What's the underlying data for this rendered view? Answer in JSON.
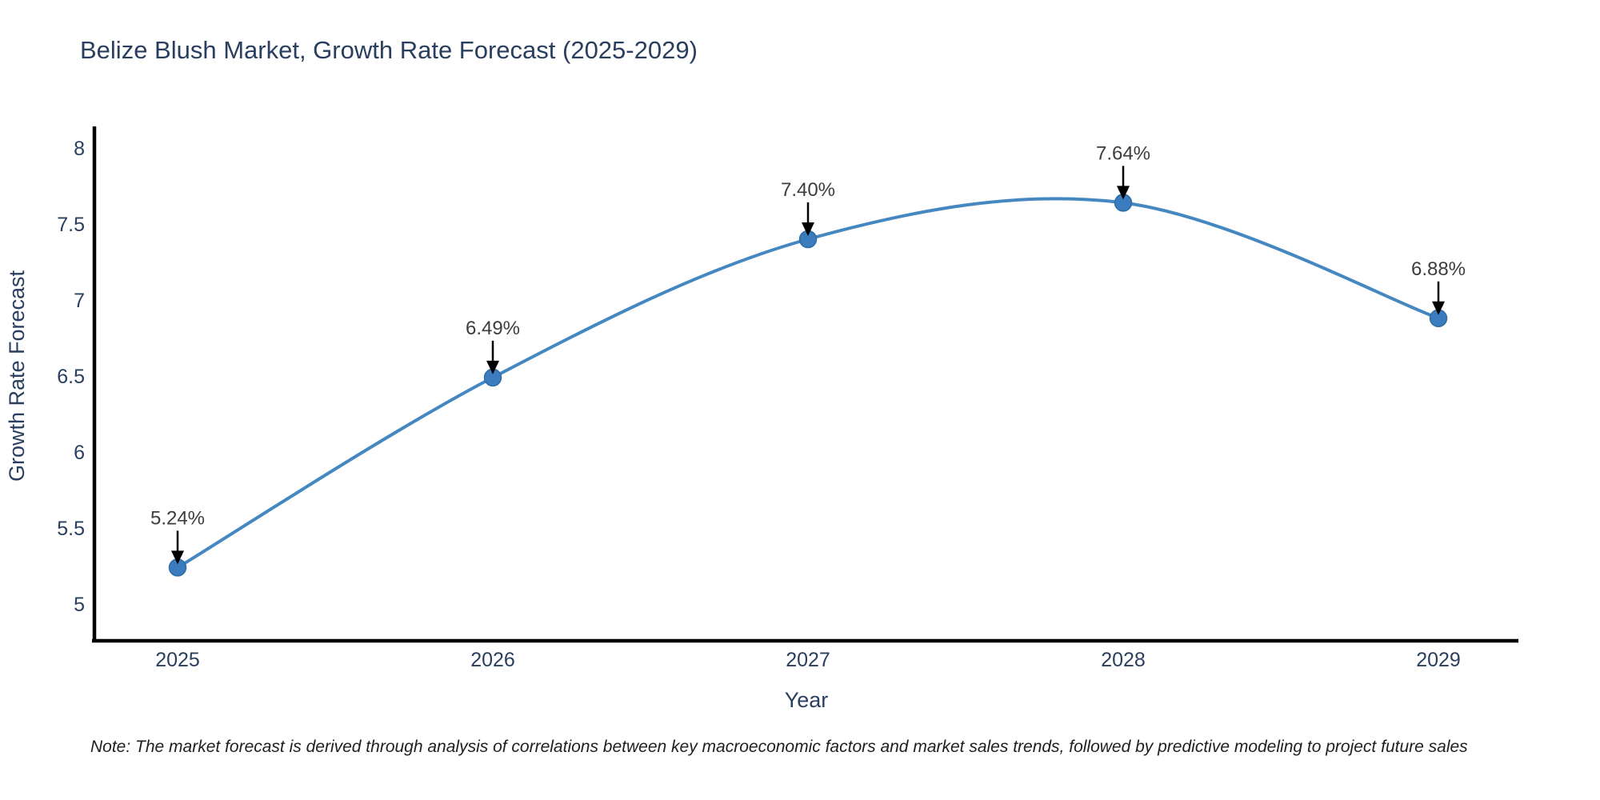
{
  "title": "Belize Blush Market, Growth Rate Forecast (2025-2029)",
  "note": "Note: The market forecast is derived through analysis of correlations between key macroeconomic factors and market sales trends, followed by predictive modeling to project future sales",
  "chart_data": {
    "type": "line",
    "title": "Belize Blush Market, Growth Rate Forecast (2025-2029)",
    "xlabel": "Year",
    "ylabel": "Growth Rate Forecast",
    "categories": [
      "2025",
      "2026",
      "2027",
      "2028",
      "2029"
    ],
    "series": [
      {
        "name": "Growth Rate Forecast",
        "values": [
          5.24,
          6.49,
          7.4,
          7.64,
          6.88
        ]
      }
    ],
    "point_labels": [
      "5.24%",
      "6.49%",
      "7.40%",
      "7.64%",
      "6.88%"
    ],
    "yticks": [
      5,
      5.5,
      6,
      6.5,
      7,
      7.5,
      8
    ],
    "ylim": [
      4.76,
      8.13
    ],
    "line_shape": "spline",
    "grid": false,
    "legend": "none",
    "colors": {
      "line": "#4587c1",
      "marker_fill": "#3a7cbd",
      "marker_edge": "#2e6ca3",
      "axis_line": "#000000",
      "axis_text": "#2a3f5f",
      "annotation_text": "#3d3d3d",
      "annotation_arrow": "#000000",
      "background": "#ffffff"
    }
  }
}
